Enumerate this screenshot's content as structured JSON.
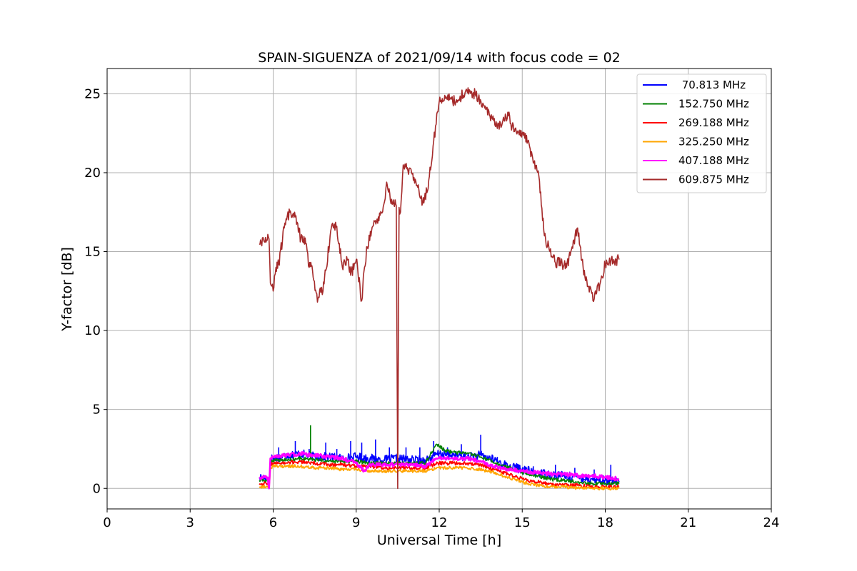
{
  "chart_data": {
    "type": "line",
    "title": "SPAIN-SIGUENZA of 2021/09/14 with focus code = 02",
    "xlabel": "Universal Time [h]",
    "ylabel": "Y-factor [dB]",
    "xlim": [
      0,
      24
    ],
    "ylim": [
      -1.3,
      26.6
    ],
    "xticks": [
      0,
      3,
      6,
      9,
      12,
      15,
      18,
      21,
      24
    ],
    "yticks": [
      0,
      5,
      10,
      15,
      20,
      25
    ],
    "grid": true,
    "legend_position": "top-right",
    "series": [
      {
        "name": " 70.813 MHz",
        "color": "#0000ff",
        "x": [
          5.5,
          5.6,
          5.8,
          5.85,
          5.9,
          6.0,
          6.5,
          7.0,
          7.5,
          8.0,
          8.5,
          9.0,
          9.5,
          10.0,
          10.5,
          11.0,
          11.5,
          12.0,
          12.5,
          13.0,
          13.5,
          14.0,
          14.5,
          15.0,
          15.5,
          16.0,
          16.5,
          17.0,
          17.5,
          18.0,
          18.5
        ],
        "y": [
          0.7,
          0.7,
          0.7,
          0.0,
          1.9,
          1.9,
          2.1,
          2.2,
          2.0,
          2.0,
          1.9,
          2.0,
          1.9,
          1.8,
          1.9,
          1.8,
          1.8,
          2.2,
          2.1,
          2.0,
          2.1,
          1.8,
          1.4,
          1.2,
          1.0,
          0.9,
          0.8,
          0.7,
          0.6,
          0.5,
          0.4
        ],
        "spikes_x": [
          6.2,
          6.8,
          7.3,
          7.9,
          8.3,
          8.8,
          9.2,
          9.7,
          10.2,
          10.8,
          11.3,
          11.8,
          12.3,
          12.8,
          13.5,
          14.1,
          14.8,
          15.4,
          16.2,
          16.9,
          17.6,
          18.2
        ],
        "spikes_y": [
          2.6,
          3.0,
          2.5,
          2.9,
          2.5,
          3.0,
          2.9,
          3.1,
          2.6,
          2.6,
          2.6,
          3.0,
          2.6,
          2.8,
          3.4,
          2.0,
          1.6,
          1.4,
          1.5,
          1.3,
          1.2,
          1.5
        ]
      },
      {
        "name": "152.750 MHz",
        "color": "#008000",
        "x": [
          5.5,
          5.8,
          5.85,
          5.9,
          6.0,
          6.5,
          7.0,
          7.5,
          8.0,
          8.5,
          9.0,
          9.5,
          10.0,
          10.5,
          11.0,
          11.5,
          11.9,
          12.2,
          12.5,
          13.0,
          13.5,
          14.0,
          14.5,
          15.0,
          15.5,
          16.0,
          16.5,
          17.0,
          17.5,
          18.0,
          18.5
        ],
        "y": [
          0.5,
          0.5,
          0.0,
          1.7,
          1.8,
          1.8,
          1.9,
          1.8,
          1.7,
          1.7,
          1.7,
          1.6,
          1.6,
          1.6,
          1.6,
          1.6,
          2.8,
          2.4,
          2.3,
          2.2,
          2.0,
          1.6,
          1.3,
          1.0,
          0.8,
          0.6,
          0.5,
          0.4,
          0.3,
          0.3,
          0.3
        ],
        "spikes_x": [
          7.35
        ],
        "spikes_y": [
          4.0
        ]
      },
      {
        "name": "269.188 MHz",
        "color": "#ff0000",
        "x": [
          5.5,
          5.8,
          5.85,
          5.9,
          6.0,
          6.5,
          7.0,
          7.5,
          8.0,
          8.5,
          9.0,
          9.5,
          10.0,
          10.5,
          11.0,
          11.5,
          12.0,
          12.5,
          13.0,
          13.5,
          14.0,
          14.5,
          15.0,
          15.5,
          16.0,
          16.5,
          17.0,
          17.5,
          18.0,
          18.5
        ],
        "y": [
          0.3,
          0.3,
          0.0,
          1.5,
          1.6,
          1.6,
          1.7,
          1.6,
          1.5,
          1.5,
          1.4,
          1.4,
          1.3,
          1.3,
          1.3,
          1.3,
          1.6,
          1.6,
          1.6,
          1.5,
          1.2,
          0.9,
          0.6,
          0.4,
          0.3,
          0.2,
          0.2,
          0.1,
          0.1,
          0.1
        ]
      },
      {
        "name": "325.250 MHz",
        "color": "#ffa500",
        "x": [
          5.5,
          5.8,
          5.85,
          5.9,
          6.0,
          6.5,
          7.0,
          7.5,
          8.0,
          8.5,
          9.0,
          9.5,
          10.0,
          10.5,
          11.0,
          11.5,
          12.0,
          12.5,
          13.0,
          13.5,
          14.0,
          14.5,
          15.0,
          15.5,
          16.0,
          16.5,
          17.0,
          17.5,
          18.0,
          18.5
        ],
        "y": [
          0.1,
          0.1,
          0.0,
          1.3,
          1.4,
          1.4,
          1.4,
          1.3,
          1.3,
          1.2,
          1.2,
          1.1,
          1.1,
          1.1,
          1.1,
          1.1,
          1.3,
          1.3,
          1.3,
          1.2,
          1.0,
          0.7,
          0.4,
          0.2,
          0.1,
          0.1,
          0.0,
          0.0,
          0.0,
          0.0
        ]
      },
      {
        "name": "407.188 MHz",
        "color": "#ff00ff",
        "x": [
          5.5,
          5.8,
          5.85,
          5.9,
          6.0,
          6.5,
          7.0,
          7.5,
          8.0,
          8.5,
          9.0,
          9.3,
          9.5,
          10.0,
          10.5,
          11.0,
          11.5,
          11.9,
          12.5,
          13.0,
          13.5,
          14.0,
          14.5,
          15.0,
          15.5,
          16.0,
          16.5,
          17.0,
          17.5,
          18.0,
          18.5
        ],
        "y": [
          0.7,
          0.7,
          0.0,
          1.9,
          2.0,
          2.1,
          2.2,
          2.1,
          2.0,
          1.9,
          1.6,
          1.1,
          1.5,
          1.5,
          1.5,
          1.5,
          1.4,
          1.9,
          1.9,
          1.9,
          1.7,
          1.4,
          1.2,
          1.1,
          1.0,
          0.9,
          0.9,
          0.8,
          0.8,
          0.7,
          0.6
        ]
      },
      {
        "name": "609.875 MHz",
        "color": "#a52a2a",
        "x": [
          5.5,
          5.7,
          5.85,
          5.9,
          6.0,
          6.1,
          6.2,
          6.4,
          6.6,
          6.7,
          6.8,
          7.0,
          7.2,
          7.3,
          7.4,
          7.6,
          7.7,
          7.8,
          7.9,
          8.1,
          8.3,
          8.5,
          8.7,
          8.8,
          9.0,
          9.2,
          9.3,
          9.4,
          9.6,
          9.8,
          10.0,
          10.1,
          10.3,
          10.45,
          10.5,
          10.55,
          10.6,
          10.7,
          11.0,
          11.2,
          11.4,
          11.6,
          11.8,
          12.0,
          12.2,
          12.6,
          13.0,
          13.3,
          13.6,
          13.9,
          14.1,
          14.3,
          14.5,
          14.7,
          15.0,
          15.2,
          15.4,
          15.6,
          15.8,
          16.0,
          16.2,
          16.4,
          16.6,
          16.8,
          17.0,
          17.2,
          17.4,
          17.6,
          17.8,
          18.0,
          18.2,
          18.5
        ],
        "y": [
          15.5,
          15.6,
          15.8,
          13.0,
          12.5,
          14.0,
          14.2,
          16.5,
          17.5,
          17.3,
          17.2,
          15.8,
          15.5,
          14.0,
          14.1,
          11.8,
          12.7,
          12.5,
          13.8,
          16.5,
          16.6,
          14.0,
          14.5,
          13.5,
          14.5,
          11.9,
          14.0,
          15.3,
          16.6,
          17.2,
          18.0,
          19.4,
          18.0,
          17.9,
          0.0,
          17.8,
          17.5,
          20.5,
          20.0,
          19.2,
          18.1,
          19.0,
          22.0,
          24.5,
          24.9,
          24.5,
          25.2,
          25.0,
          24.3,
          23.5,
          22.8,
          23.3,
          23.6,
          22.6,
          22.5,
          22.0,
          20.6,
          19.8,
          16.0,
          15.0,
          14.3,
          14.3,
          14.0,
          15.3,
          16.5,
          14.0,
          12.8,
          12.0,
          12.9,
          14.2,
          14.4,
          14.5
        ]
      }
    ]
  }
}
